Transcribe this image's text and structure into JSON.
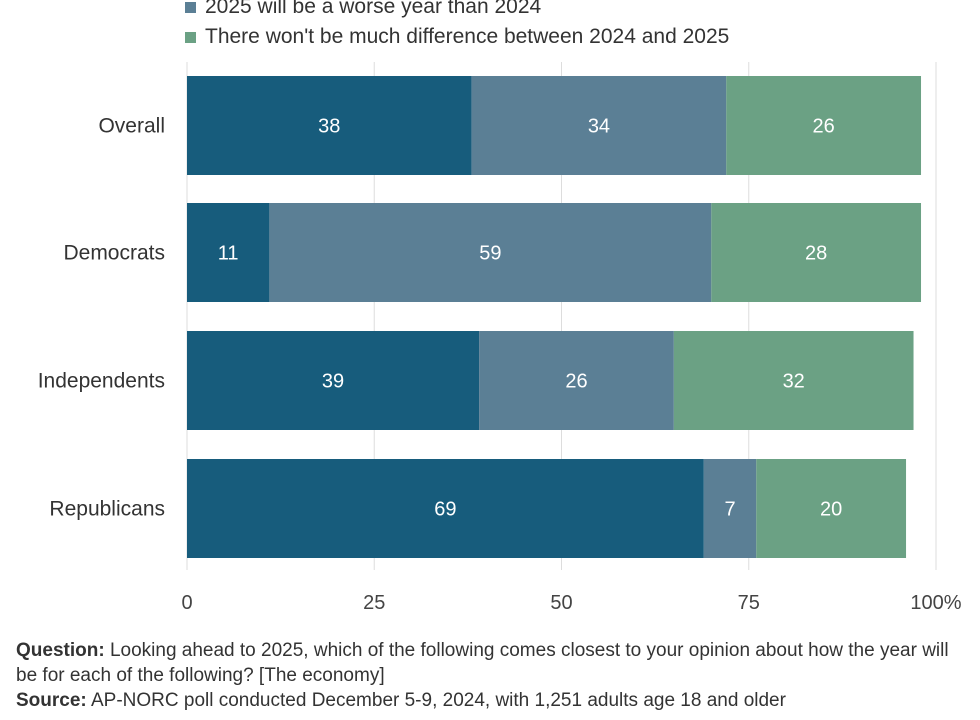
{
  "legend": [
    {
      "label": "2025 will be a worse year than 2024",
      "color": "#5b7f95"
    },
    {
      "label": "There won't be much difference between 2024 and 2025",
      "color": "#6ba184"
    }
  ],
  "chart_data": {
    "type": "bar",
    "orientation": "horizontal",
    "stacked": true,
    "categories": [
      "Overall",
      "Democrats",
      "Independents",
      "Republicans"
    ],
    "series": [
      {
        "color": "#175c7c",
        "values": [
          38,
          11,
          39,
          69
        ]
      },
      {
        "name": "2025 will be a worse year than 2024",
        "color": "#5b7f95",
        "values": [
          34,
          59,
          26,
          7
        ]
      },
      {
        "name": "There won't be much difference between 2024 and 2025",
        "color": "#6ba184",
        "values": [
          26,
          28,
          32,
          20
        ]
      }
    ],
    "xlim": [
      0,
      100
    ],
    "xticks": [
      "0",
      "25",
      "50",
      "75",
      "100%"
    ],
    "grid": true
  },
  "footer": {
    "question_label": "Question:",
    "question_text": " Looking ahead to 2025, which of the following comes closest to your opinion about how the year will be for each of the following? [The economy]",
    "source_label": "Source:",
    "source_text": " AP-NORC poll conducted December 5-9, 2024, with 1,251 adults age 18 and older"
  }
}
